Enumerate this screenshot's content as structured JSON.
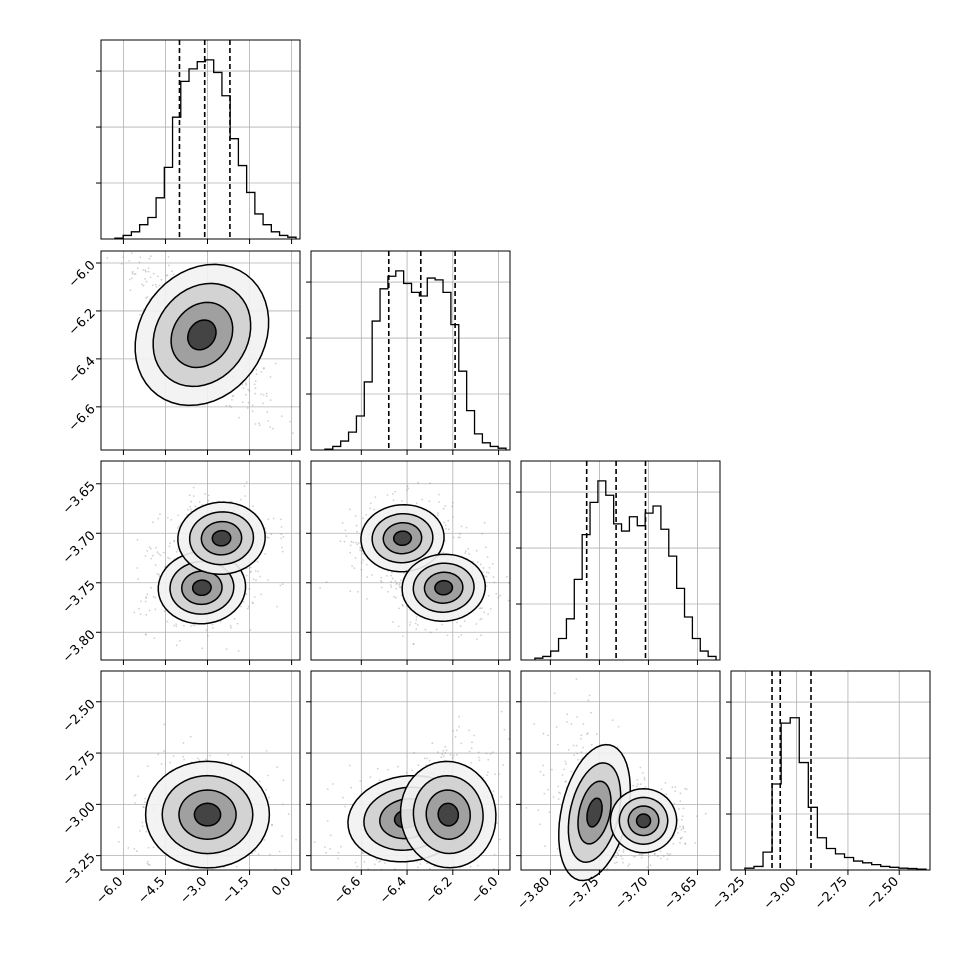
{
  "chart_data": {
    "type": "corner",
    "parameters": 4,
    "grid": true,
    "quantile_lines": {
      "p0": [
        -4.0,
        -3.1,
        -2.2
      ],
      "p1": [
        -6.48,
        -6.34,
        -6.19
      ],
      "p2": [
        -3.763,
        -3.733,
        -3.703
      ],
      "p3": [
        -3.12,
        -3.08,
        -2.93
      ]
    },
    "diagonal_ranges": {
      "p0": [
        -6.8,
        0.3
      ],
      "p1": [
        -6.82,
        -5.95
      ],
      "p2": [
        -3.83,
        -3.627
      ],
      "p3": [
        -3.32,
        -2.35
      ]
    },
    "offdiag_y_ranges": {
      "p1": [
        -6.78,
        -5.95
      ],
      "p2": [
        -3.828,
        -3.627
      ],
      "p3": [
        -3.32,
        -2.35
      ]
    },
    "histograms": {
      "p0": [
        0.005,
        0.02,
        0.04,
        0.08,
        0.12,
        0.23,
        0.4,
        0.68,
        0.88,
        0.95,
        0.99,
        1.0,
        0.93,
        0.8,
        0.56,
        0.41,
        0.26,
        0.14,
        0.08,
        0.04,
        0.02,
        0.01
      ],
      "p1": [
        0.005,
        0.02,
        0.05,
        0.1,
        0.19,
        0.38,
        0.72,
        0.9,
        0.97,
        1.0,
        0.93,
        0.88,
        0.86,
        0.96,
        0.95,
        0.88,
        0.7,
        0.44,
        0.22,
        0.09,
        0.04,
        0.02,
        0.01
      ],
      "p2": [
        0.01,
        0.02,
        0.05,
        0.12,
        0.23,
        0.45,
        0.7,
        0.88,
        1.0,
        0.92,
        0.76,
        0.72,
        0.8,
        0.75,
        0.82,
        0.86,
        0.73,
        0.58,
        0.4,
        0.24,
        0.12,
        0.05,
        0.02
      ],
      "p3": [
        0.01,
        0.02,
        0.1,
        0.48,
        0.82,
        0.85,
        0.6,
        0.35,
        0.18,
        0.12,
        0.09,
        0.07,
        0.05,
        0.04,
        0.03,
        0.02,
        0.015,
        0.01,
        0.008,
        0.005
      ]
    },
    "x_ticks": {
      "p0": [
        -6.0,
        -4.5,
        -3.0,
        -1.5,
        0.0
      ],
      "p1": [
        -6.6,
        -6.4,
        -6.2,
        -6.0
      ],
      "p2": [
        -3.8,
        -3.75,
        -3.7,
        -3.65
      ],
      "p3": [
        -3.25,
        -3.0,
        -2.75,
        -2.5
      ]
    },
    "x_tick_labels": {
      "p0": [
        "−6.0",
        "−4.5",
        "−3.0",
        "−1.5",
        "0.0"
      ],
      "p1": [
        "−6.6",
        "−6.4",
        "−6.2",
        "−6.0"
      ],
      "p2": [
        "−3.80",
        "−3.75",
        "−3.70",
        "−3.65"
      ],
      "p3": [
        "−3.25",
        "−3.00",
        "−2.75",
        "−2.50"
      ]
    },
    "y_ticks": {
      "p1": [
        -6.0,
        -6.2,
        -6.4,
        -6.6
      ],
      "p2": [
        -3.65,
        -3.7,
        -3.75,
        -3.8
      ],
      "p3": [
        -2.5,
        -2.75,
        -3.0,
        -3.25
      ]
    },
    "y_tick_labels": {
      "p1": [
        "−6.0",
        "−6.2",
        "−6.4",
        "−6.6"
      ],
      "p2": [
        "−3.65",
        "−3.70",
        "−3.75",
        "−3.80"
      ],
      "p3": [
        "−2.50",
        "−2.75",
        "−3.00",
        "−3.25"
      ]
    },
    "hist_y_ticks": [
      0.29,
      0.58,
      0.87
    ],
    "modes": {
      "p0_p1": [
        {
          "x": -3.2,
          "y": -6.3,
          "sx": 0.85,
          "sy": 0.12,
          "r": -0.85
        }
      ],
      "p0_p2": [
        {
          "x": -3.2,
          "y": -3.755,
          "sx": 0.6,
          "sy": 0.014,
          "r": 0.1
        },
        {
          "x": -2.5,
          "y": -3.705,
          "sx": 0.6,
          "sy": 0.014,
          "r": 0.1
        }
      ],
      "p1_p2": [
        {
          "x": -6.42,
          "y": -3.705,
          "sx": 0.07,
          "sy": 0.013,
          "r": 0.1
        },
        {
          "x": -6.24,
          "y": -3.755,
          "sx": 0.07,
          "sy": 0.013,
          "r": 0.1
        }
      ],
      "p0_p3": [
        {
          "x": -3.0,
          "y": -3.05,
          "sx": 0.85,
          "sy": 0.1,
          "r": 0.0
        }
      ],
      "p1_p3": [
        {
          "x": -6.4,
          "y": -3.07,
          "sx": 0.1,
          "sy": 0.08,
          "r": 0.2
        },
        {
          "x": -6.22,
          "y": -3.05,
          "sx": 0.08,
          "sy": 0.1,
          "r": 0.2
        }
      ],
      "p2_p3": [
        {
          "x": -3.755,
          "y": -3.04,
          "sx": 0.013,
          "sy": 0.13,
          "r": -0.3
        },
        {
          "x": -3.705,
          "y": -3.08,
          "sx": 0.013,
          "sy": 0.06,
          "r": 0.0
        }
      ]
    }
  }
}
